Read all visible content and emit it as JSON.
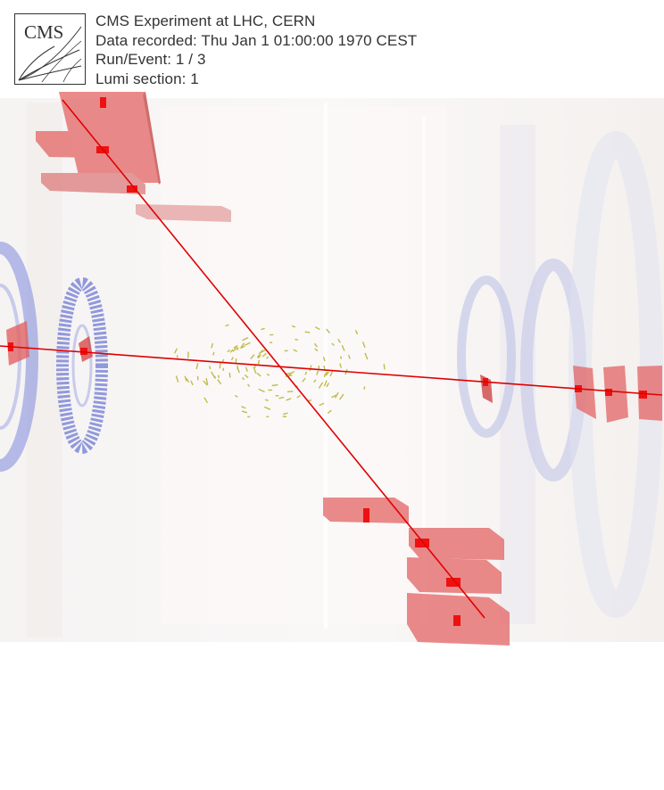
{
  "header": {
    "logo_text": "CMS",
    "experiment": "CMS Experiment at LHC, CERN",
    "recorded": "Data recorded: Thu Jan  1 01:00:00 1970 CEST",
    "run_event": "Run/Event: 1 / 3",
    "lumi": "Lumi section: 1"
  },
  "colors": {
    "track": "#e00000",
    "muon_chamber": "#e46a6a",
    "endcap": "#7f8be0",
    "tracker_hits": "#b5b230"
  },
  "icons": [
    "cms-logo-icon"
  ]
}
